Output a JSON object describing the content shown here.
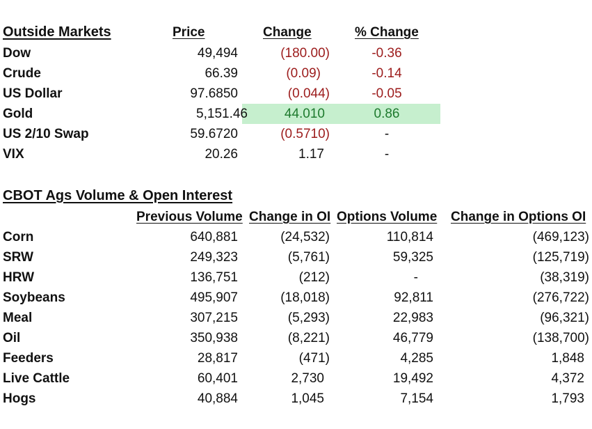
{
  "outside": {
    "title": "Outside Markets",
    "headers": {
      "price": "Price",
      "change": "Change ",
      "pct": "% Change"
    },
    "rows": [
      {
        "name": "Dow",
        "price": "49,494",
        "change": "(180.00)",
        "pct": "-0.36"
      },
      {
        "name": "Crude",
        "price": "66.39",
        "change": "(0.09)",
        "pct": "-0.14"
      },
      {
        "name": "US Dollar",
        "price": "97.6850",
        "change": "(0.044)",
        "pct": "-0.05"
      },
      {
        "name": "Gold",
        "price": "5,151.46",
        "change": "44.010",
        "pct": "0.86"
      },
      {
        "name": "US 2/10 Swap",
        "price": "59.6720",
        "change": "(0.5710)",
        "pct": "-"
      },
      {
        "name": "VIX",
        "price": "20.26",
        "change": "1.17",
        "pct": "-"
      }
    ]
  },
  "cbot": {
    "title": "CBOT Ags Volume & Open Interest",
    "headers": {
      "prev_volume": "Previous Volume",
      "change_oi": "Change in OI",
      "options_volume": "Options Volume",
      "change_options_oi": "Change in Options OI"
    },
    "rows": [
      {
        "name": "Corn",
        "prev_volume": "640,881",
        "change_oi": "(24,532)",
        "options_volume": "110,814",
        "change_options_oi": "(469,123)"
      },
      {
        "name": "SRW",
        "prev_volume": "249,323",
        "change_oi": "(5,761)",
        "options_volume": "59,325",
        "change_options_oi": "(125,719)"
      },
      {
        "name": "HRW",
        "prev_volume": "136,751",
        "change_oi": "(212)",
        "options_volume": "-",
        "change_options_oi": "(38,319)"
      },
      {
        "name": "Soybeans",
        "prev_volume": "495,907",
        "change_oi": "(18,018)",
        "options_volume": "92,811",
        "change_options_oi": "(276,722)"
      },
      {
        "name": "Meal",
        "prev_volume": "307,215",
        "change_oi": "(5,293)",
        "options_volume": "22,983",
        "change_options_oi": "(96,321)"
      },
      {
        "name": "Oil",
        "prev_volume": "350,938",
        "change_oi": "(8,221)",
        "options_volume": "46,779",
        "change_options_oi": "(138,700)"
      },
      {
        "name": "Feeders",
        "prev_volume": "28,817",
        "change_oi": "(471)",
        "options_volume": "4,285",
        "change_options_oi": "1,848"
      },
      {
        "name": "Live Cattle",
        "prev_volume": "60,401",
        "change_oi": "2,730",
        "options_volume": "19,492",
        "change_options_oi": "4,372"
      },
      {
        "name": "Hogs",
        "prev_volume": "40,884",
        "change_oi": "1,045",
        "options_volume": "7,154",
        "change_options_oi": "1,793"
      }
    ]
  },
  "colors": {
    "negative": "#9c1c1c",
    "positive": "#1e7a2e",
    "highlight": "#c6efce"
  }
}
